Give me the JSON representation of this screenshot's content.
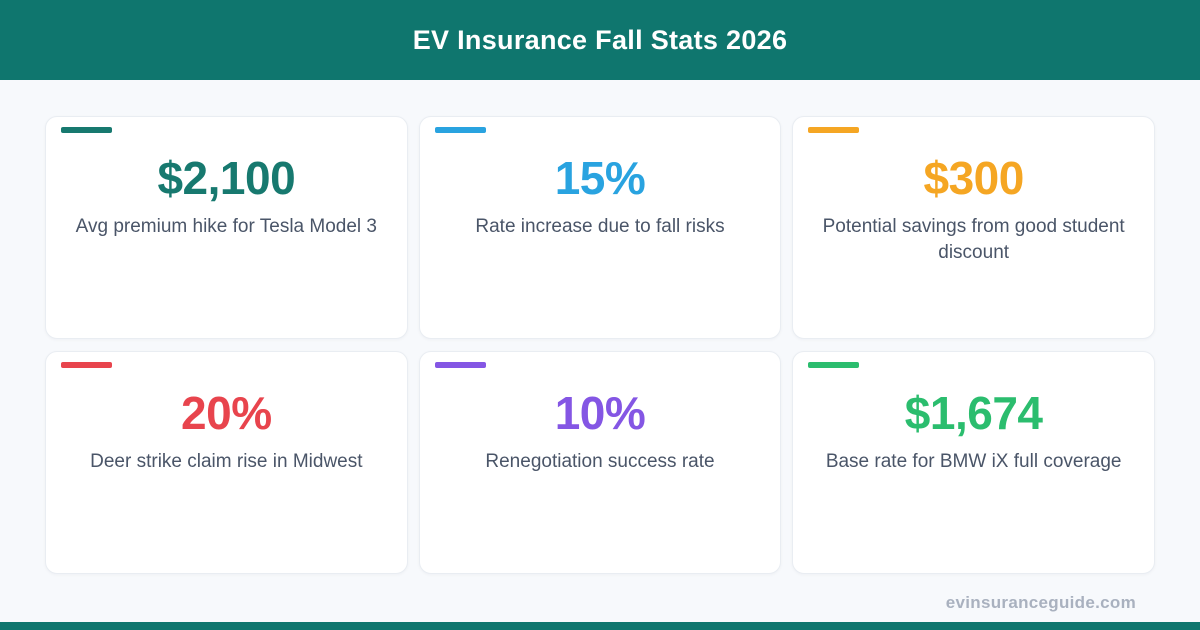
{
  "header": {
    "title": "EV Insurance Fall Stats 2026",
    "bg_color": "#0f766e"
  },
  "cards": [
    {
      "value": "$2,100",
      "label": "Avg premium hike for Tesla Model 3",
      "color": "#17796f"
    },
    {
      "value": "15%",
      "label": "Rate increase due to fall risks",
      "color": "#29a3e0"
    },
    {
      "value": "$300",
      "label": "Potential savings from good student discount",
      "color": "#f5a623"
    },
    {
      "value": "20%",
      "label": "Deer strike claim rise in Midwest",
      "color": "#e8444d"
    },
    {
      "value": "10%",
      "label": "Renegotiation success rate",
      "color": "#8456e4"
    },
    {
      "value": "$1,674",
      "label": "Base rate for BMW iX full coverage",
      "color": "#2bbd6e"
    }
  ],
  "footer": {
    "watermark": "evinsuranceguide.com",
    "bar_color": "#0f766e"
  }
}
